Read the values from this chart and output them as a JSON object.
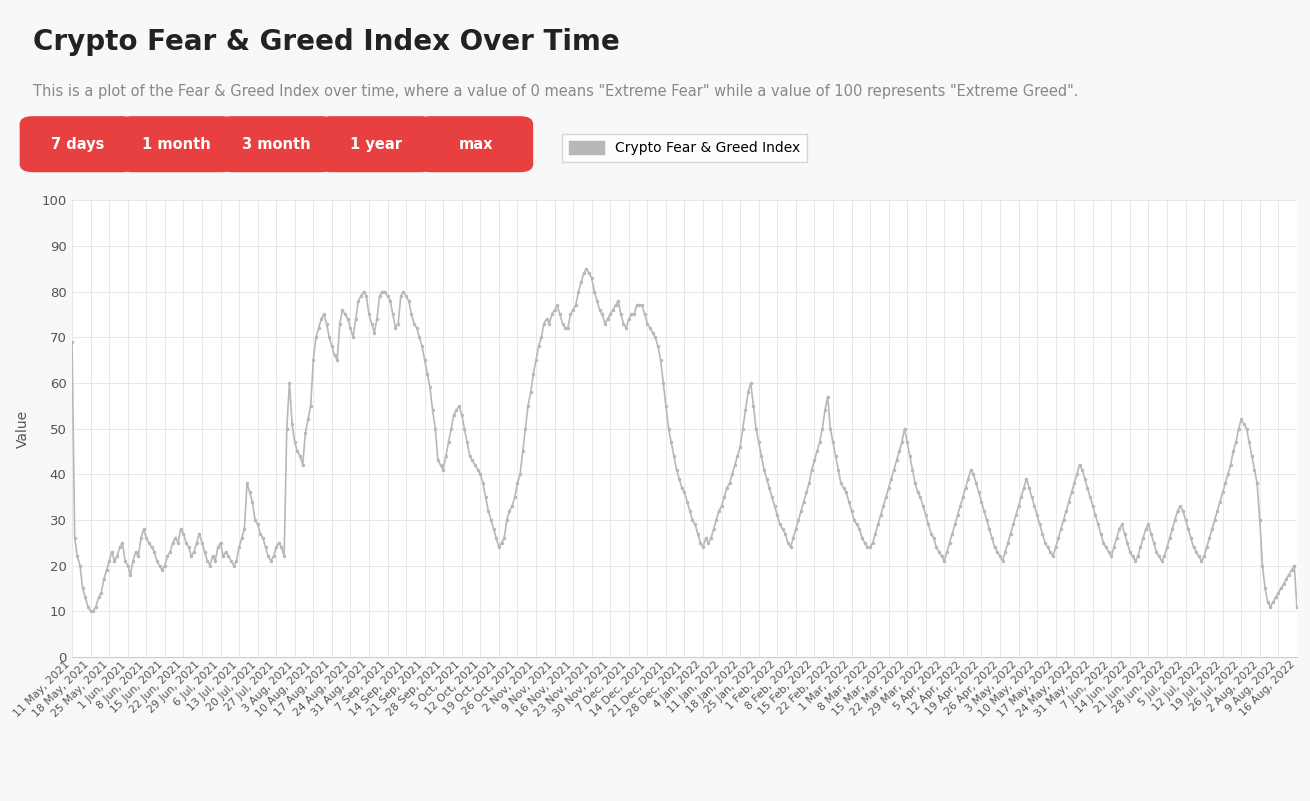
{
  "title": "Crypto Fear & Greed Index Over Time",
  "subtitle": "This is a plot of the Fear & Greed Index over time, where a value of 0 means \"Extreme Fear\" while a value of 100 represents \"Extreme Greed\".",
  "legend_label": "Crypto Fear & Greed Index",
  "ylabel": "Value",
  "ylim": [
    0,
    100
  ],
  "yticks": [
    0,
    10,
    20,
    30,
    40,
    50,
    60,
    70,
    80,
    90,
    100
  ],
  "line_color": "#b8b8b8",
  "line_width": 1.2,
  "background_color": "#f8f8f8",
  "plot_bg_color": "#ffffff",
  "grid_color": "#e8e8e8",
  "title_color": "#222222",
  "subtitle_color": "#888888",
  "button_color": "#e84040",
  "button_text_color": "#ffffff",
  "buttons": [
    "7 days",
    "1 month",
    "3 month",
    "1 year",
    "max"
  ],
  "start_date": "2021-05-11",
  "values": [
    69,
    26,
    22,
    20,
    15,
    13,
    11,
    10,
    10,
    11,
    13,
    14,
    17,
    19,
    21,
    23,
    21,
    22,
    24,
    25,
    21,
    20,
    18,
    21,
    23,
    22,
    26,
    28,
    26,
    25,
    24,
    23,
    21,
    20,
    19,
    20,
    22,
    23,
    25,
    26,
    25,
    28,
    27,
    25,
    24,
    22,
    23,
    25,
    27,
    25,
    23,
    21,
    20,
    22,
    21,
    24,
    25,
    22,
    23,
    22,
    21,
    20,
    21,
    24,
    26,
    28,
    38,
    36,
    34,
    30,
    29,
    27,
    26,
    24,
    22,
    21,
    22,
    24,
    25,
    24,
    22,
    50,
    60,
    51,
    47,
    45,
    44,
    42,
    49,
    52,
    55,
    65,
    70,
    72,
    74,
    75,
    73,
    70,
    68,
    66,
    65,
    73,
    76,
    75,
    74,
    72,
    70,
    74,
    78,
    79,
    80,
    79,
    75,
    73,
    71,
    74,
    79,
    80,
    80,
    79,
    78,
    75,
    72,
    73,
    79,
    80,
    79,
    78,
    75,
    73,
    72,
    70,
    68,
    65,
    62,
    59,
    54,
    50,
    43,
    42,
    41,
    44,
    47,
    50,
    53,
    54,
    55,
    53,
    50,
    47,
    44,
    43,
    42,
    41,
    40,
    38,
    35,
    32,
    30,
    28,
    26,
    24,
    25,
    26,
    30,
    32,
    33,
    35,
    38,
    40,
    45,
    50,
    55,
    58,
    62,
    65,
    68,
    70,
    73,
    74,
    73,
    75,
    76,
    77,
    75,
    73,
    72,
    72,
    75,
    76,
    77,
    80,
    82,
    84,
    85,
    84,
    83,
    80,
    78,
    76,
    75,
    73,
    74,
    75,
    76,
    77,
    78,
    75,
    73,
    72,
    74,
    75,
    75,
    77,
    77,
    77,
    75,
    73,
    72,
    71,
    70,
    68,
    65,
    60,
    55,
    50,
    47,
    44,
    41,
    39,
    37,
    36,
    34,
    32,
    30,
    29,
    27,
    25,
    24,
    26,
    25,
    26,
    28,
    30,
    32,
    33,
    35,
    37,
    38,
    40,
    42,
    44,
    46,
    50,
    54,
    58,
    60,
    55,
    50,
    47,
    44,
    41,
    39,
    37,
    35,
    33,
    31,
    29,
    28,
    27,
    25,
    24,
    26,
    28,
    30,
    32,
    34,
    36,
    38,
    41,
    43,
    45,
    47,
    50,
    54,
    57,
    50,
    47,
    44,
    41,
    38,
    37,
    36,
    34,
    32,
    30,
    29,
    28,
    26,
    25,
    24,
    24,
    25,
    27,
    29,
    31,
    33,
    35,
    37,
    39,
    41,
    43,
    45,
    47,
    50,
    47,
    44,
    41,
    38,
    36,
    35,
    33,
    31,
    29,
    27,
    26,
    24,
    23,
    22,
    21,
    23,
    25,
    27,
    29,
    31,
    33,
    35,
    37,
    39,
    41,
    40,
    38,
    36,
    34,
    32,
    30,
    28,
    26,
    24,
    23,
    22,
    21,
    23,
    25,
    27,
    29,
    31,
    33,
    35,
    37,
    39,
    37,
    35,
    33,
    31,
    29,
    27,
    25,
    24,
    23,
    22,
    24,
    26,
    28,
    30,
    32,
    34,
    36,
    38,
    40,
    42,
    41,
    39,
    37,
    35,
    33,
    31,
    29,
    27,
    25,
    24,
    23,
    22,
    24,
    26,
    28,
    29,
    27,
    25,
    23,
    22,
    21,
    22,
    24,
    26,
    28,
    29,
    27,
    25,
    23,
    22,
    21,
    22,
    24,
    26,
    28,
    30,
    32,
    33,
    32,
    30,
    28,
    26,
    24,
    23,
    22,
    21,
    22,
    24,
    26,
    28,
    30,
    32,
    34,
    36,
    38,
    40,
    42,
    45,
    47,
    50,
    52,
    51,
    50,
    47,
    44,
    41,
    38,
    30,
    20,
    15,
    12,
    11,
    12,
    13,
    14,
    15,
    16,
    17,
    18,
    19,
    20,
    11
  ]
}
